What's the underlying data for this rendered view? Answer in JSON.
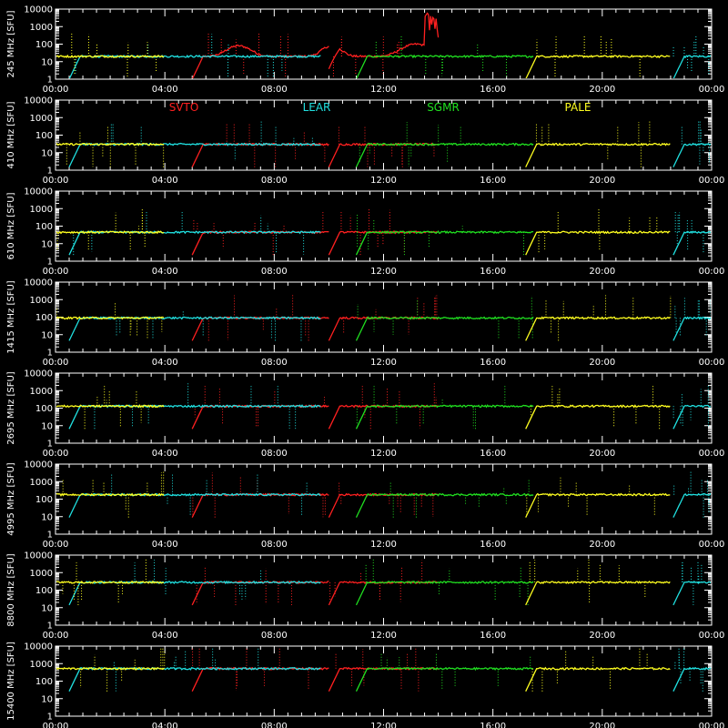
{
  "chart_data": {
    "type": "line",
    "x_tick_labels": [
      "00:00",
      "04:00",
      "08:00",
      "12:00",
      "16:00",
      "20:00",
      "00:00"
    ],
    "y_tick_labels": [
      "1",
      "10",
      "100",
      "1000",
      "10000"
    ],
    "y_scale": "log",
    "ylim": [
      1,
      10000
    ],
    "xlim_hours": [
      0,
      24
    ],
    "y_unit": "[SFU]",
    "legend": [
      {
        "name": "SVTO",
        "color": "#ff2020"
      },
      {
        "name": "LEAR",
        "color": "#20e0e0"
      },
      {
        "name": "SGMR",
        "color": "#20e020"
      },
      {
        "name": "PALE",
        "color": "#ffff20"
      }
    ],
    "legend_panel": 1,
    "panels": [
      {
        "frequency": "245 MHz",
        "base": 20
      },
      {
        "frequency": "410 MHz",
        "base": 30
      },
      {
        "frequency": "610 MHz",
        "base": 45
      },
      {
        "frequency": "1415 MHz",
        "base": 90
      },
      {
        "frequency": "2695 MHz",
        "base": 130
      },
      {
        "frequency": "4995 MHz",
        "base": 180
      },
      {
        "frequency": "8800 MHz",
        "base": 280
      },
      {
        "frequency": "15400 MHz",
        "base": 520
      }
    ],
    "station_segments": [
      {
        "station": "SVTO",
        "start": 5.0,
        "end": 10.0
      },
      {
        "station": "SVTO",
        "start": 10.0,
        "end": 14.0
      },
      {
        "station": "LEAR",
        "start": 0.5,
        "end": 9.7
      },
      {
        "station": "SGMR",
        "start": 11.0,
        "end": 17.5
      },
      {
        "station": "PALE",
        "start": 0.0,
        "end": 4.0
      },
      {
        "station": "PALE",
        "start": 17.2,
        "end": 22.5
      },
      {
        "station": "LEAR",
        "start": 22.6,
        "end": 24.0
      }
    ]
  }
}
